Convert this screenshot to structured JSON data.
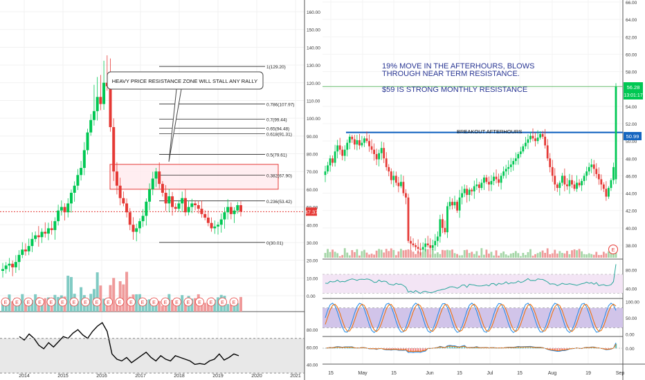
{
  "colors": {
    "up": "#26a69a",
    "down": "#e53935",
    "upBright": "#00c853",
    "blueLine": "#1565c0",
    "annotation": "#283593",
    "fibLine": "#000000",
    "zoneFill": "#ffebee",
    "zoneBorder": "#e53935",
    "rsiBand": "#f3e5f5",
    "stochBand": "#d1c4e9",
    "grayBand": "#e8e8e8"
  },
  "left_panel": {
    "price_axis_labels": [
      "160.00",
      "150.00",
      "140.00",
      "130.00",
      "120.00",
      "110.00",
      "100.00",
      "90.00",
      "80.00",
      "70.00",
      "60.00",
      "50.00",
      "40.00",
      "30.00",
      "20.00",
      "10.00",
      "0.00"
    ],
    "current_price": "47.37",
    "earnings_marker": "E",
    "earnings_count": 21,
    "osc_axis_labels": [
      "80.00",
      "60.00",
      "40.00"
    ],
    "time_labels": [
      "2014",
      "2015",
      "2016",
      "2017",
      "2018",
      "2019",
      "2020",
      "2021"
    ],
    "fib_labels": [
      "1(129.20)",
      "0.786(107.97)",
      "0.7(99.44)",
      "0.65(94.48)",
      "0.618(91.31)",
      "0.5(79.61)",
      "0.382(67.90)",
      "0.236(53.42)",
      "0(30.01)"
    ],
    "callout_text": "HEAVY PRICE RESISTANCE ZONE WILL STALL ANY RALLY"
  },
  "right_panel": {
    "price_axis_labels": [
      "66.00",
      "64.00",
      "62.00",
      "60.00",
      "58.00",
      "56.00",
      "54.00",
      "52.00",
      "50.00",
      "48.00",
      "46.00",
      "44.00",
      "42.00",
      "40.00",
      "38.00"
    ],
    "last_price": "56.28",
    "countdown": "13:01:17",
    "breakout_price": "50.99",
    "breakout_label": "BREAKOUT AFTERHOURS",
    "annotation_line1": "19% MOVE IN THE AFTERHOURS, BLOWS",
    "annotation_line2": "THROUGH NEAR TERM RESISTANCE.",
    "annotation_line3": "$59 IS STRONG MONTHLY RESISTANCE",
    "earnings_marker": "E",
    "rsi_axis_labels": [
      "80.00",
      "40.00"
    ],
    "stoch_axis_labels": [
      "100.00",
      "50.00",
      "0.00"
    ],
    "macd_axis_labels": [
      "0.00"
    ],
    "time_labels": [
      "15",
      "May",
      "15",
      "Jun",
      "15",
      "Jul",
      "15",
      "Aug",
      "19",
      "Sep"
    ]
  },
  "chart_data": [
    {
      "type": "candlestick",
      "timeframe": "monthly",
      "x_start": "2014-01",
      "ylim": [
        0,
        165
      ],
      "close": [
        15,
        17,
        18,
        16,
        19,
        23,
        26,
        25,
        28,
        32,
        34,
        33,
        36,
        35,
        38,
        37,
        42,
        48,
        50,
        47,
        52,
        58,
        62,
        68,
        72,
        82,
        92,
        99,
        104,
        112,
        108,
        120,
        118,
        95,
        70,
        62,
        55,
        52,
        47,
        40,
        36,
        38,
        42,
        45,
        53,
        60,
        66,
        70,
        63,
        58,
        52,
        56,
        50,
        49,
        52,
        55,
        47,
        50,
        52,
        51,
        49,
        46,
        44,
        41,
        38,
        39,
        40,
        43,
        47,
        50,
        46,
        48,
        51,
        47.37
      ],
      "fib_levels": [
        {
          "label": "1",
          "value": 129.2
        },
        {
          "label": "0.786",
          "value": 107.97
        },
        {
          "label": "0.7",
          "value": 99.44
        },
        {
          "label": "0.65",
          "value": 94.48
        },
        {
          "label": "0.618",
          "value": 91.31
        },
        {
          "label": "0.5",
          "value": 79.61
        },
        {
          "label": "0.382",
          "value": 67.9
        },
        {
          "label": "0.236",
          "value": 53.42
        },
        {
          "label": "0",
          "value": 30.01
        }
      ],
      "resistance_zone": [
        60,
        74
      ],
      "current_price": 47.37
    },
    {
      "type": "line",
      "name": "oscillator",
      "ylim": [
        30,
        100
      ],
      "values": [
        72,
        68,
        75,
        70,
        62,
        58,
        65,
        60,
        66,
        72,
        70,
        76,
        80,
        74,
        70,
        78,
        84,
        88,
        78,
        52,
        46,
        44,
        48,
        42,
        46,
        50,
        54,
        48,
        44,
        50,
        46,
        44,
        50,
        48,
        46,
        44,
        40,
        41,
        40,
        44,
        46,
        52,
        45,
        48,
        52,
        50
      ],
      "dashed_levels": [
        70,
        30
      ]
    },
    {
      "type": "candlestick",
      "timeframe": "daily",
      "ylim": [
        37,
        66
      ],
      "close": [
        46.5,
        47.2,
        48.0,
        47.5,
        48.8,
        49.5,
        49.0,
        48.3,
        49.0,
        49.8,
        50.5,
        50.2,
        49.6,
        50.1,
        49.5,
        49.8,
        50.3,
        50.0,
        49.4,
        49.0,
        48.5,
        47.9,
        48.6,
        49.2,
        48.0,
        47.0,
        46.5,
        45.5,
        46.0,
        45.2,
        44.8,
        45.3,
        44.0,
        43.5,
        38.5,
        38.2,
        38.0,
        37.8,
        37.6,
        37.5,
        37.8,
        38.2,
        38.0,
        37.7,
        38.0,
        38.5,
        39.0,
        41.0,
        40.0,
        39.5,
        42.5,
        43.0,
        42.6,
        43.0,
        42.0,
        43.5,
        44.0,
        44.5,
        43.8,
        44.4,
        44.2,
        44.8,
        45.0,
        44.6,
        45.2,
        45.8,
        45.3,
        45.0,
        45.4,
        45.9,
        45.6,
        45.2,
        46.0,
        46.5,
        46.8,
        47.0,
        47.3,
        47.7,
        48.0,
        48.5,
        48.8,
        49.4,
        49.8,
        50.2,
        50.6,
        50.3,
        50.0,
        50.4,
        50.8,
        50.5,
        49.5,
        48.0,
        47.0,
        46.0,
        45.0,
        44.6,
        45.2,
        46.0,
        45.0,
        44.8,
        45.5,
        45.0,
        44.5,
        45.2,
        44.9,
        45.4,
        46.0,
        46.5,
        47.0,
        47.3,
        46.8,
        46.2,
        45.6,
        45.0,
        44.5,
        43.6,
        44.6,
        45.5,
        47.0,
        56.28
      ],
      "breakout_level": 50.99,
      "resistance_level": 56.28,
      "last_price": 56.28
    },
    {
      "type": "line",
      "name": "RSI",
      "ylim": [
        20,
        100
      ],
      "dashed_levels": [
        70,
        30
      ]
    },
    {
      "type": "line",
      "name": "Stochastic",
      "ylim": [
        -5,
        105
      ],
      "dashed_levels": [
        80,
        20
      ]
    },
    {
      "type": "line",
      "name": "MACD",
      "zero_line": 0
    }
  ]
}
